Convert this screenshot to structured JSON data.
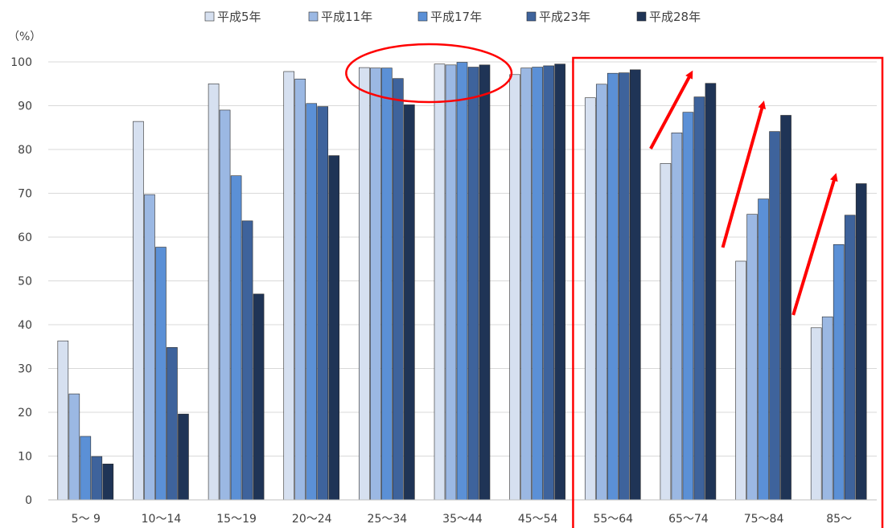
{
  "chart_data": {
    "type": "bar",
    "ylabel": "（%）",
    "ylim": [
      0,
      100
    ],
    "yticks": [
      0,
      10,
      20,
      30,
      40,
      50,
      60,
      70,
      80,
      90,
      100
    ],
    "grid": true,
    "legend_position": "top-center",
    "categories": [
      "5～ 9",
      "10～14",
      "15～19",
      "20～24",
      "25～34",
      "35～44",
      "45～54",
      "55～64",
      "65～74",
      "75～84",
      "85～"
    ],
    "series": [
      {
        "name": "平成5年",
        "color": "#d6e0f0",
        "values": [
          36.3,
          86.4,
          95.0,
          97.8,
          98.7,
          99.5,
          97.1,
          91.8,
          76.8,
          54.5,
          39.3
        ]
      },
      {
        "name": "平成11年",
        "color": "#9bb8e3",
        "values": [
          24.2,
          69.7,
          89.0,
          96.1,
          98.6,
          99.3,
          98.6,
          94.9,
          83.8,
          65.2,
          41.8
        ]
      },
      {
        "name": "平成17年",
        "color": "#5b90d6",
        "values": [
          14.5,
          57.7,
          74.0,
          90.5,
          98.6,
          99.9,
          98.8,
          97.4,
          88.5,
          68.7,
          58.3
        ]
      },
      {
        "name": "平成23年",
        "color": "#3e639c",
        "values": [
          9.9,
          34.8,
          63.7,
          89.8,
          96.2,
          98.8,
          99.1,
          97.5,
          92.0,
          84.1,
          65.0
        ]
      },
      {
        "name": "平成28年",
        "color": "#1f3456",
        "values": [
          8.2,
          19.6,
          47.0,
          78.6,
          90.2,
          99.3,
          99.5,
          98.2,
          95.1,
          87.8,
          72.2
        ]
      }
    ],
    "annotations": {
      "highlight_color": "#ff0000",
      "ellipse_categories": [
        "25～34",
        "35～44"
      ],
      "box_start_category": "55～64",
      "arrow_categories": [
        "65～74",
        "75～84",
        "85～"
      ]
    }
  }
}
